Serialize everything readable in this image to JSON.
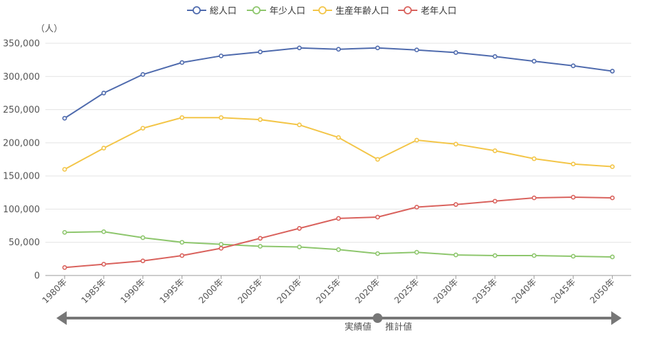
{
  "chart_data": {
    "type": "line",
    "title": "",
    "unit_label": "（人）",
    "xlabel": "",
    "ylabel": "",
    "ylim": [
      0,
      350000
    ],
    "yticks": [
      0,
      50000,
      100000,
      150000,
      200000,
      250000,
      300000,
      350000
    ],
    "ytick_labels": [
      "0",
      "50,000",
      "100,000",
      "150,000",
      "200,000",
      "250,000",
      "300,000",
      "350,000"
    ],
    "categories": [
      "1980年",
      "1985年",
      "1990年",
      "1995年",
      "2000年",
      "2005年",
      "2010年",
      "2015年",
      "2020年",
      "2025年",
      "2030年",
      "2035年",
      "2040年",
      "2045年",
      "2050年"
    ],
    "grid": true,
    "legend_position": "top-center",
    "series": [
      {
        "name": "総人口",
        "color": "#4e6aad",
        "marker": "open-circle",
        "values": [
          237000,
          275000,
          303000,
          321000,
          331000,
          337000,
          343000,
          341000,
          343000,
          340000,
          336000,
          330000,
          323000,
          316000,
          308000
        ]
      },
      {
        "name": "年少人口",
        "color": "#8dc66c",
        "marker": "open-circle",
        "values": [
          65000,
          66000,
          57000,
          50000,
          47000,
          44000,
          43000,
          39000,
          33000,
          35000,
          31000,
          30000,
          30000,
          29000,
          28000
        ]
      },
      {
        "name": "生産年齢人口",
        "color": "#f3c547",
        "marker": "open-circle",
        "values": [
          160000,
          192000,
          222000,
          238000,
          238000,
          235000,
          227000,
          208000,
          175000,
          204000,
          198000,
          188000,
          176000,
          168000,
          164000
        ]
      },
      {
        "name": "老年人口",
        "color": "#d9615c",
        "marker": "open-circle",
        "values": [
          12000,
          17000,
          22000,
          30000,
          41000,
          56000,
          71000,
          86000,
          88000,
          103000,
          107000,
          112000,
          117000,
          118000,
          117000
        ]
      }
    ],
    "annotations": {
      "divider_category": "2020年",
      "left_label": "実績値",
      "right_label": "推計値",
      "arrow_color": "#777777"
    }
  }
}
